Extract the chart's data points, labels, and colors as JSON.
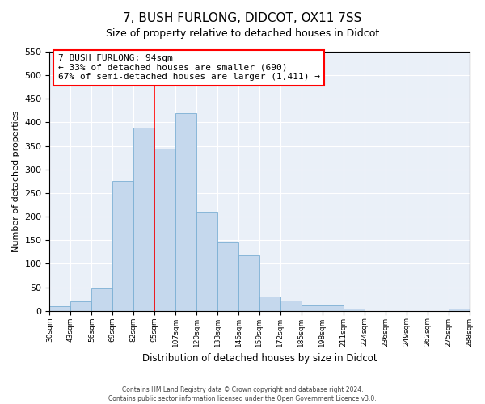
{
  "title": "7, BUSH FURLONG, DIDCOT, OX11 7SS",
  "subtitle": "Size of property relative to detached houses in Didcot",
  "xlabel": "Distribution of detached houses by size in Didcot",
  "ylabel": "Number of detached properties",
  "bin_labels": [
    "30sqm",
    "43sqm",
    "56sqm",
    "69sqm",
    "82sqm",
    "95sqm",
    "107sqm",
    "120sqm",
    "133sqm",
    "146sqm",
    "159sqm",
    "172sqm",
    "185sqm",
    "198sqm",
    "211sqm",
    "224sqm",
    "236sqm",
    "249sqm",
    "262sqm",
    "275sqm",
    "288sqm"
  ],
  "bar_values": [
    10,
    20,
    48,
    275,
    388,
    345,
    420,
    210,
    145,
    118,
    30,
    22,
    12,
    12,
    5,
    0,
    0,
    0,
    0,
    5
  ],
  "bar_color": "#c5d8ed",
  "bar_edge_color": "#7bafd4",
  "property_line_bin": 5,
  "ylim": [
    0,
    550
  ],
  "yticks": [
    0,
    50,
    100,
    150,
    200,
    250,
    300,
    350,
    400,
    450,
    500,
    550
  ],
  "annotation_title": "7 BUSH FURLONG: 94sqm",
  "annotation_line1": "← 33% of detached houses are smaller (690)",
  "annotation_line2": "67% of semi-detached houses are larger (1,411) →",
  "footer_line1": "Contains HM Land Registry data © Crown copyright and database right 2024.",
  "footer_line2": "Contains public sector information licensed under the Open Government Licence v3.0.",
  "background_color": "#eaf0f8"
}
